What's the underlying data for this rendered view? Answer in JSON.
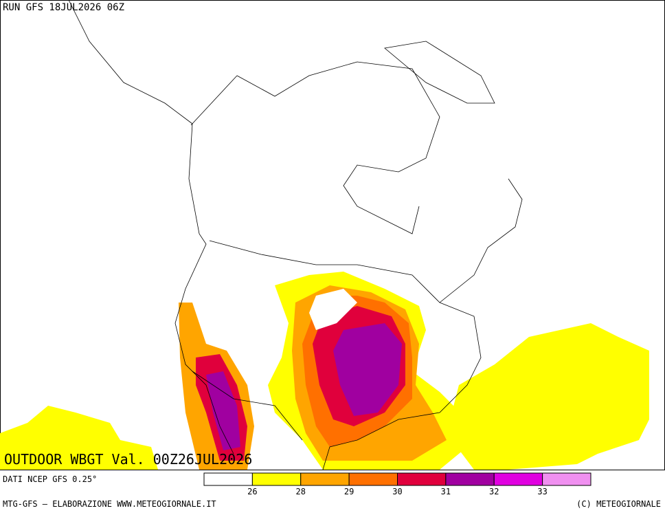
{
  "header": {
    "run": "RUN GFS 18JUL2026 06Z"
  },
  "map": {
    "title": "OUTDOOR WBGT Val. 00Z26JUL2026"
  },
  "legend": {
    "source": "DATI NCEP GFS 0.25°",
    "colors": [
      "#ffffff",
      "#ffff00",
      "#ffa500",
      "#ff7000",
      "#e0003c",
      "#a000a0",
      "#e000e0",
      "#f090f0"
    ],
    "ticks": [
      26,
      28,
      29,
      30,
      31,
      32,
      33
    ]
  },
  "footer": {
    "left": "MTG-GFS — ELABORAZIONE WWW.METEOGIORNALE.IT",
    "right": "(C) METEOGIORNALE"
  }
}
